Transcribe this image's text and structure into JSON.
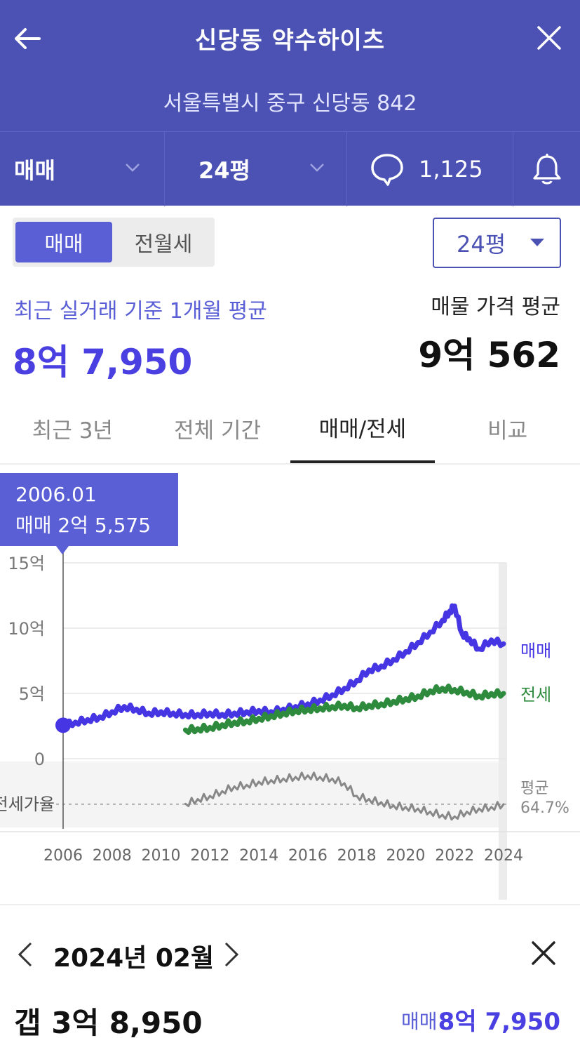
{
  "header": {
    "title": "신당동 약수하이츠",
    "address": "서울특별시 중구 신당동 842",
    "deal_type": "매매",
    "size": "24평",
    "comment_count": "1,125",
    "icons": [
      "back-arrow-icon",
      "close-icon",
      "chevron-down-icon",
      "speech-bubble-icon",
      "bell-icon"
    ]
  },
  "toggle": {
    "active": "매매",
    "inactive": "전월세"
  },
  "size_select": {
    "value": "24평"
  },
  "summary": {
    "recent_label": "최근 실거래 기준 1개월 평균",
    "recent_value": "8억 7,950",
    "asking_label": "매물 가격 평균",
    "asking_value": "9억 562"
  },
  "tabs": [
    {
      "label": "최근 3년",
      "active": false
    },
    {
      "label": "전체 기간",
      "active": false
    },
    {
      "label": "매매/전세",
      "active": true
    },
    {
      "label": "비교",
      "active": false
    }
  ],
  "tooltip": {
    "date": "2006.01",
    "value": "매매 2억 5,575"
  },
  "chart_data": {
    "type": "line",
    "title": "",
    "xlabel": "",
    "ylabel": "",
    "unit": "억",
    "x_ticks": [
      "2006",
      "2008",
      "2010",
      "2012",
      "2014",
      "2016",
      "2018",
      "2020",
      "2022",
      "2024"
    ],
    "y_ticks": [
      "15억",
      "10억",
      "5억",
      "0"
    ],
    "ylim": [
      0,
      15
    ],
    "series": [
      {
        "name": "매매",
        "color": "#4535e3",
        "x": [
          2006.0,
          2006.5,
          2007.0,
          2007.5,
          2008.0,
          2008.5,
          2009.0,
          2009.5,
          2010.0,
          2010.5,
          2011.0,
          2011.5,
          2012.0,
          2012.5,
          2013.0,
          2013.5,
          2014.0,
          2014.5,
          2015.0,
          2015.5,
          2016.0,
          2016.5,
          2017.0,
          2017.5,
          2018.0,
          2018.5,
          2019.0,
          2019.5,
          2020.0,
          2020.5,
          2021.0,
          2021.5,
          2021.8,
          2022.0,
          2022.3,
          2022.6,
          2023.0,
          2023.5,
          2024.0
        ],
        "values": [
          2.56,
          2.8,
          3.0,
          3.2,
          3.6,
          4.0,
          3.8,
          3.5,
          3.6,
          3.5,
          3.4,
          3.4,
          3.5,
          3.4,
          3.5,
          3.6,
          3.7,
          3.6,
          3.8,
          4.0,
          4.2,
          4.5,
          4.9,
          5.4,
          6.0,
          6.8,
          7.1,
          7.6,
          8.2,
          8.9,
          9.7,
          10.6,
          11.3,
          11.7,
          9.6,
          9.2,
          8.4,
          9.1,
          8.8
        ]
      },
      {
        "name": "전세",
        "color": "#2e8b3e",
        "x": [
          2011.0,
          2011.5,
          2012.0,
          2012.5,
          2013.0,
          2013.5,
          2014.0,
          2014.5,
          2015.0,
          2015.5,
          2016.0,
          2016.5,
          2017.0,
          2017.5,
          2018.0,
          2018.5,
          2019.0,
          2019.5,
          2020.0,
          2020.5,
          2021.0,
          2021.5,
          2022.0,
          2022.5,
          2023.0,
          2023.5,
          2024.0
        ],
        "values": [
          2.2,
          2.3,
          2.4,
          2.6,
          2.8,
          2.9,
          3.1,
          3.3,
          3.5,
          3.7,
          3.8,
          3.9,
          4.0,
          4.1,
          3.9,
          4.1,
          4.2,
          4.4,
          4.6,
          4.8,
          5.2,
          5.4,
          5.3,
          5.1,
          4.8,
          5.0,
          5.0
        ]
      },
      {
        "name": "전세가율",
        "color": "#888888",
        "x": [
          2011.0,
          2011.5,
          2012.0,
          2012.5,
          2013.0,
          2013.5,
          2014.0,
          2014.5,
          2015.0,
          2015.5,
          2016.0,
          2016.5,
          2017.0,
          2017.5,
          2018.0,
          2018.5,
          2019.0,
          2019.5,
          2020.0,
          2020.5,
          2021.0,
          2021.5,
          2022.0,
          2022.5,
          2023.0,
          2023.5,
          2024.0
        ],
        "values": [
          65,
          68,
          70,
          73,
          76,
          77,
          79,
          80,
          81,
          82,
          83,
          82,
          81,
          78,
          70,
          68,
          66,
          64,
          63,
          62,
          60,
          58,
          57,
          60,
          62,
          63,
          64.7
        ]
      }
    ],
    "legend": {
      "sale": "매매",
      "jeonse": "전세"
    },
    "ratio_axis_label": "전세가율",
    "ratio_avg_label": "평균",
    "ratio_avg_value": "64.7%",
    "grid": true,
    "legend_placement": "right"
  },
  "detail": {
    "month": "2024년 02월",
    "gap": "갭 3억 8,950",
    "trade_label": "매매",
    "trade_value": "8억 7,950"
  }
}
